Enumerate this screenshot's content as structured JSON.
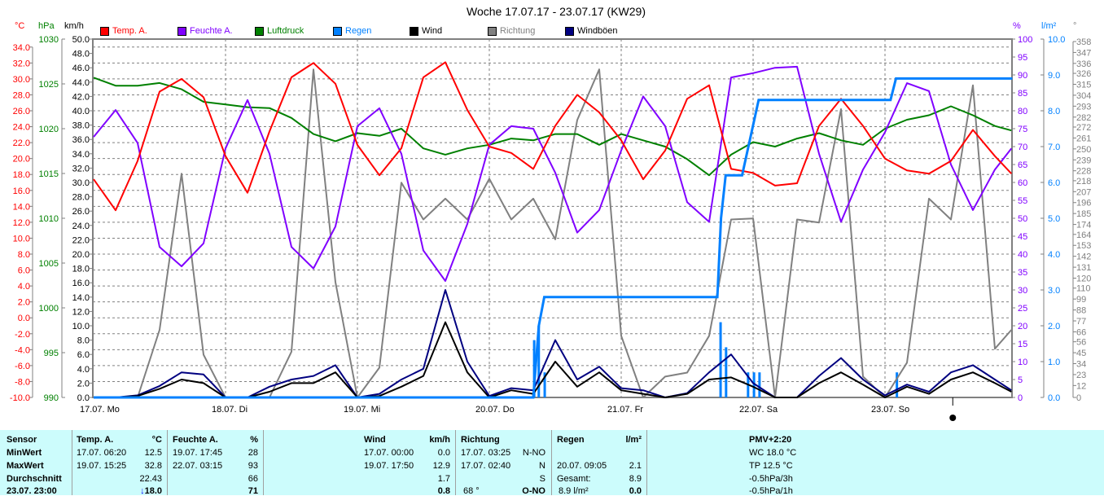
{
  "title": "Woche 17.07.17 - 23.07.17 (KW29)",
  "units": {
    "temp": "°C",
    "pressure": "hPa",
    "wind": "km/h",
    "humidity": "%",
    "rain": "l/m²",
    "direction": "°"
  },
  "legend": [
    {
      "label": "Temp. A.",
      "color": "#ff0000"
    },
    {
      "label": "Feuchte A.",
      "color": "#8000ff"
    },
    {
      "label": "Luftdruck",
      "color": "#008000"
    },
    {
      "label": "Regen",
      "color": "#0080ff"
    },
    {
      "label": "Wind",
      "color": "#000000"
    },
    {
      "label": "Richtung",
      "color": "#808080"
    },
    {
      "label": "Windböen",
      "color": "#000080"
    }
  ],
  "chart_data": {
    "type": "line",
    "title": "Woche 17.07.17 - 23.07.17 (KW29)",
    "grid": true,
    "legend_position": "top",
    "x_tick_labels": [
      {
        "time": "17.07 00:00",
        "label": "17.07.  Mo"
      },
      {
        "time": "18.07 00:00",
        "label": "18.07.  Di"
      },
      {
        "time": "19.07 00:00",
        "label": "19.07.  Mi"
      },
      {
        "time": "20.07 00:00",
        "label": "20.07.  Do"
      },
      {
        "time": "21.07 00:00",
        "label": "21.07.  Fr"
      },
      {
        "time": "22.07 00:00",
        "label": "22.07.  Sa"
      },
      {
        "time": "23.07 00:00",
        "label": "23.07.  So"
      }
    ],
    "xlim": [
      "17.07 00:00",
      "23.07 23:10"
    ],
    "axes": {
      "temp": {
        "ylim": [
          -10,
          35
        ],
        "ticks": [
          "34.0",
          "32.0",
          "30.0",
          "28.0",
          "26.0",
          "24.0",
          "22.0",
          "20.0",
          "18.0",
          "16.0",
          "14.0",
          "12.0",
          "10.0",
          "8.0",
          "6.0",
          "4.0",
          "2.0",
          "0.0",
          "-2.0",
          "-4.0",
          "-6.0",
          "-8.0",
          "-10.0"
        ]
      },
      "pressure": {
        "ylim": [
          990,
          1030
        ],
        "ticks": [
          "1030",
          "1025",
          "1020",
          "1015",
          "1010",
          "1005",
          "1000",
          "995",
          "990"
        ]
      },
      "wind": {
        "ylim": [
          0,
          50
        ],
        "ticks": [
          "50.0",
          "48.0",
          "46.0",
          "44.0",
          "42.0",
          "40.0",
          "38.0",
          "36.0",
          "34.0",
          "32.0",
          "30.0",
          "28.0",
          "26.0",
          "24.0",
          "22.0",
          "20.0",
          "18.0",
          "16.0",
          "14.0",
          "12.0",
          "10.0",
          "8.0",
          "6.0",
          "4.0",
          "2.0",
          "0.0"
        ]
      },
      "humidity": {
        "ylim": [
          0,
          100
        ],
        "ticks": [
          "100",
          "95",
          "90",
          "85",
          "80",
          "75",
          "70",
          "65",
          "60",
          "55",
          "50",
          "45",
          "40",
          "35",
          "30",
          "25",
          "20",
          "15",
          "10",
          "5",
          "0"
        ]
      },
      "rain": {
        "ylim": [
          0,
          10
        ],
        "ticks": [
          "10.0",
          "9.0",
          "8.0",
          "7.0",
          "6.0",
          "5.0",
          "4.0",
          "3.0",
          "2.0",
          "1.0",
          "0.0"
        ]
      },
      "direction": {
        "ylim": [
          0,
          358
        ],
        "ticks": [
          "358",
          "347",
          "336",
          "326",
          "315",
          "304",
          "293",
          "282",
          "272",
          "261",
          "250",
          "239",
          "228",
          "218",
          "207",
          "196",
          "185",
          "174",
          "164",
          "153",
          "142",
          "131",
          "120",
          "110",
          "99",
          "88",
          "77",
          "66",
          "56",
          "45",
          "34",
          "23",
          "12",
          "0"
        ]
      }
    },
    "x": [
      "17.07 00:00",
      "17.07 04:00",
      "17.07 08:00",
      "17.07 12:00",
      "17.07 16:00",
      "17.07 20:00",
      "18.07 00:00",
      "18.07 04:00",
      "18.07 08:00",
      "18.07 12:00",
      "18.07 16:00",
      "18.07 20:00",
      "19.07 00:00",
      "19.07 04:00",
      "19.07 08:00",
      "19.07 12:00",
      "19.07 16:00",
      "19.07 20:00",
      "20.07 00:00",
      "20.07 04:00",
      "20.07 08:00",
      "20.07 12:00",
      "20.07 16:00",
      "20.07 20:00",
      "21.07 00:00",
      "21.07 04:00",
      "21.07 08:00",
      "21.07 12:00",
      "21.07 16:00",
      "21.07 20:00",
      "22.07 00:00",
      "22.07 04:00",
      "22.07 08:00",
      "22.07 12:00",
      "22.07 16:00",
      "22.07 20:00",
      "23.07 00:00",
      "23.07 04:00",
      "23.07 08:00",
      "23.07 12:00",
      "23.07 16:00",
      "23.07 20:00",
      "23.07 23:00"
    ],
    "series": [
      {
        "name": "Temp. A.",
        "axis": "temp",
        "color": "#ff0000",
        "values": [
          17.4,
          13.5,
          19.7,
          28.4,
          30.0,
          27.7,
          20.3,
          15.7,
          23.4,
          30.2,
          32.0,
          29.4,
          21.7,
          17.9,
          21.3,
          30.2,
          32.1,
          26.1,
          21.5,
          20.7,
          18.7,
          24.1,
          28.0,
          25.8,
          22.3,
          17.4,
          21.0,
          27.5,
          29.2,
          18.7,
          18.2,
          16.6,
          16.9,
          24.1,
          27.5,
          24.1,
          20.0,
          18.5,
          18.1,
          19.7,
          23.6,
          20.3,
          18.1
        ]
      },
      {
        "name": "Feuchte A.",
        "axis": "humidity",
        "color": "#8000ff",
        "values": [
          72.7,
          80.2,
          71,
          42,
          36.6,
          43,
          69.5,
          83,
          68,
          42,
          36,
          47.7,
          75.7,
          80.7,
          68,
          41,
          32.5,
          48.4,
          70.5,
          75.7,
          75,
          62.7,
          46,
          52.3,
          68.9,
          84,
          75.7,
          54.5,
          49,
          89.3,
          90.5,
          92,
          92.3,
          68,
          49,
          63.6,
          74,
          87.7,
          85.5,
          65,
          52.3,
          63.6,
          69.5
        ]
      },
      {
        "name": "Luftdruck",
        "axis": "pressure",
        "color": "#008000",
        "values": [
          1025.7,
          1024.8,
          1024.8,
          1025.1,
          1024.4,
          1023,
          1022.7,
          1022.4,
          1022.3,
          1021.2,
          1019.4,
          1018.6,
          1019.5,
          1019.2,
          1020,
          1017.8,
          1017.1,
          1017.8,
          1018.2,
          1018.9,
          1018.7,
          1019.4,
          1019.4,
          1018.2,
          1019.4,
          1018.7,
          1018,
          1016.6,
          1014.8,
          1017.1,
          1018.5,
          1018,
          1018.9,
          1019.5,
          1018.7,
          1018.2,
          1020,
          1021,
          1021.5,
          1022.5,
          1021.5,
          1020.3,
          1019.8
        ]
      },
      {
        "name": "Richtung",
        "axis": "direction",
        "color": "#808080",
        "values": [
          0,
          0,
          0,
          68,
          225,
          43,
          0,
          0,
          0,
          46,
          330,
          116,
          0,
          30,
          216,
          179,
          200,
          179,
          220,
          179,
          200,
          159,
          279,
          330,
          62,
          0,
          21,
          25,
          62,
          179,
          180,
          0,
          179,
          176,
          290,
          21,
          0,
          35,
          200,
          179,
          314,
          49,
          68
        ]
      },
      {
        "name": "Windböen",
        "axis": "wind",
        "color": "#000080",
        "values": [
          0,
          0,
          0.3,
          1.6,
          3.5,
          3.2,
          0,
          0,
          1.5,
          2.5,
          3.0,
          4.5,
          0,
          0.5,
          2.5,
          4.0,
          15,
          5.0,
          0.2,
          1.3,
          1.0,
          8,
          2.5,
          4.3,
          1.3,
          1.0,
          0,
          0.6,
          3.5,
          6.0,
          2.0,
          0,
          0,
          3.0,
          5.5,
          2.5,
          0.3,
          1.8,
          0.8,
          3.5,
          4.5,
          2.5,
          1.0
        ]
      },
      {
        "name": "Wind",
        "axis": "wind",
        "color": "#000000",
        "values": [
          0,
          0,
          0.2,
          1.2,
          2.5,
          2.0,
          0,
          0,
          0.8,
          2.0,
          2.0,
          3.5,
          0,
          0.2,
          1.5,
          3.0,
          10.5,
          3.5,
          0,
          1.0,
          0.5,
          5,
          1.5,
          3.5,
          1.0,
          0.5,
          0,
          0.5,
          2.5,
          2.8,
          1.5,
          0,
          0,
          2.0,
          3.5,
          1.8,
          0,
          1.5,
          0.5,
          2.5,
          3.5,
          2.0,
          0.8
        ]
      }
    ],
    "rain_total": {
      "name": "Regen",
      "axis": "rain",
      "color": "#0080ff",
      "points": [
        [
          "17.07 00:00",
          0
        ],
        [
          "20.07 08:00",
          0
        ],
        [
          "20.07 09:00",
          2.0
        ],
        [
          "20.07 10:00",
          2.8
        ],
        [
          "21.07 17:30",
          2.8
        ],
        [
          "21.07 18:10",
          5.0
        ],
        [
          "21.07 19:00",
          6.2
        ],
        [
          "21.07 22:00",
          6.2
        ],
        [
          "22.07 01:00",
          8.3
        ],
        [
          "23.07 01:00",
          8.3
        ],
        [
          "23.07 02:00",
          8.9
        ],
        [
          "23.07 23:10",
          8.9
        ]
      ]
    },
    "rain_bars": {
      "axis": "rain",
      "color": "#0080ff",
      "points": [
        [
          "20.07 08:10",
          1.6
        ],
        [
          "20.07 09:00",
          2.0
        ],
        [
          "20.07 10:05",
          0.7
        ],
        [
          "21.07 18:05",
          2.1
        ],
        [
          "21.07 19:05",
          1.4
        ],
        [
          "21.07 23:05",
          0.7
        ],
        [
          "22.07 00:10",
          0.7
        ],
        [
          "22.07 01:10",
          0.7
        ],
        [
          "23.07 02:10",
          0.7
        ]
      ]
    },
    "marker_time": "23.07 12:20"
  },
  "table": {
    "header": {
      "sensor": "Sensor",
      "temp": "Temp. A.",
      "temp_unit": "°C",
      "hum": "Feuchte A.",
      "hum_unit": "%",
      "wind": "Wind",
      "wind_unit": "km/h",
      "dir": "Richtung",
      "rain": "Regen",
      "rain_unit": "l/m²",
      "pmv": "PMV+2:20"
    },
    "min": {
      "label": "MinWert",
      "temp_time": "17.07.  06:20",
      "temp": "12.5",
      "hum_time": "19.07.  17:45",
      "hum": "28",
      "wind_time": "17.07.  00:00",
      "wind": "0.0",
      "dir_time": "17.07.  03:25",
      "dir": "N-NO",
      "extra": "WC 18.0 °C"
    },
    "max": {
      "label": "MaxWert",
      "temp_time": "19.07.  15:25",
      "temp": "32.8",
      "hum_time": "22.07.  03:15",
      "hum": "93",
      "wind_time": "19.07.  17:50",
      "wind": "12.9",
      "dir_time": "17.07.  02:40",
      "dir": "N",
      "rain_time": "20.07.  09:05",
      "rain": "2.1",
      "extra": "TP 12.5 °C"
    },
    "avg": {
      "label": "Durchschnitt",
      "temp": "22.43",
      "hum": "66",
      "wind": "1.7",
      "dir": "S",
      "rain_label": "Gesamt:",
      "rain": "8.9",
      "extra": "-0.5hPa/3h"
    },
    "current": {
      "label": "23.07.  23:00",
      "trend_arrow": "↓",
      "temp": "18.0",
      "hum": "71",
      "wind": "0.8",
      "dir_deg": "68 °",
      "dir": "O-NO",
      "rain_total": "8.9 l/m²",
      "rain": "0.0",
      "extra": "-0.5hPa/1h"
    }
  }
}
